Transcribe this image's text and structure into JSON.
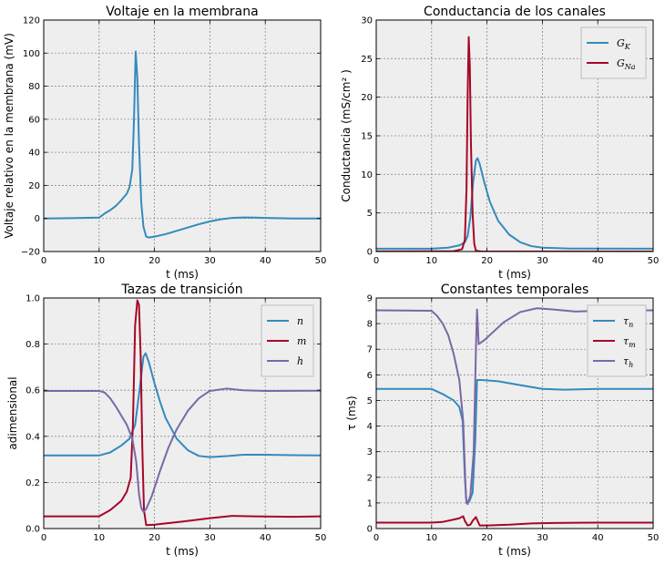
{
  "chart_data": [
    {
      "type": "line",
      "title": "Voltaje en la membrana",
      "xlabel": "t (ms)",
      "ylabel": "Voltaje relativo en la membrana (mV)",
      "xlim": [
        0,
        50
      ],
      "ylim": [
        -20,
        120
      ],
      "xticks": [
        "0",
        "10",
        "20",
        "30",
        "40",
        "50"
      ],
      "yticks": [
        "−20",
        "0",
        "20",
        "40",
        "60",
        "80",
        "100",
        "120"
      ],
      "grid": true,
      "legend": null,
      "series": [
        {
          "color": "#348abd",
          "points": [
            [
              0,
              0
            ],
            [
              5,
              0.2
            ],
            [
              10,
              0.5
            ],
            [
              11,
              3
            ],
            [
              12,
              5
            ],
            [
              13,
              7.5
            ],
            [
              14,
              11
            ],
            [
              15,
              15
            ],
            [
              15.5,
              19
            ],
            [
              16,
              30
            ],
            [
              16.3,
              60
            ],
            [
              16.6,
              101
            ],
            [
              16.9,
              85
            ],
            [
              17.2,
              45
            ],
            [
              17.6,
              10
            ],
            [
              18,
              -5
            ],
            [
              18.5,
              -11
            ],
            [
              19,
              -11.5
            ],
            [
              20,
              -11
            ],
            [
              22,
              -9.5
            ],
            [
              24,
              -7.5
            ],
            [
              26,
              -5.5
            ],
            [
              28,
              -3.5
            ],
            [
              30,
              -1.8
            ],
            [
              32,
              -0.5
            ],
            [
              34,
              0.3
            ],
            [
              36,
              0.6
            ],
            [
              38,
              0.5
            ],
            [
              40,
              0.3
            ],
            [
              45,
              0
            ],
            [
              50,
              0
            ]
          ]
        }
      ]
    },
    {
      "type": "line",
      "title": "Conductancia de los canales",
      "xlabel": "t (ms)",
      "ylabel": "Conductancia (mS/cm² )",
      "xlim": [
        0,
        50
      ],
      "ylim": [
        0,
        30
      ],
      "xticks": [
        "0",
        "10",
        "20",
        "30",
        "40",
        "50"
      ],
      "yticks": [
        "0",
        "5",
        "10",
        "15",
        "20",
        "25",
        "30"
      ],
      "grid": true,
      "legend": "top-right",
      "legend_entries": [
        "G",
        "G"
      ],
      "legend_subscripts": [
        "K",
        "Na"
      ],
      "series": [
        {
          "color": "#348abd",
          "points": [
            [
              0,
              0.37
            ],
            [
              10,
              0.37
            ],
            [
              13,
              0.5
            ],
            [
              15,
              0.8
            ],
            [
              16,
              1.2
            ],
            [
              16.5,
              2
            ],
            [
              17,
              4.5
            ],
            [
              17.5,
              9
            ],
            [
              18,
              11.8
            ],
            [
              18.3,
              12.1
            ],
            [
              18.7,
              11.3
            ],
            [
              19.5,
              9
            ],
            [
              20.5,
              6.5
            ],
            [
              22,
              4
            ],
            [
              24,
              2.2
            ],
            [
              26,
              1.2
            ],
            [
              28,
              0.7
            ],
            [
              30,
              0.5
            ],
            [
              35,
              0.38
            ],
            [
              50,
              0.37
            ]
          ]
        },
        {
          "color": "#a60628",
          "points": [
            [
              0,
              0.02
            ],
            [
              14,
              0.05
            ],
            [
              15.5,
              0.3
            ],
            [
              16,
              1.5
            ],
            [
              16.3,
              8
            ],
            [
              16.5,
              20
            ],
            [
              16.7,
              27.8
            ],
            [
              16.9,
              24
            ],
            [
              17.1,
              14
            ],
            [
              17.4,
              5
            ],
            [
              17.7,
              1
            ],
            [
              18,
              0.1
            ],
            [
              19,
              0
            ],
            [
              50,
              0
            ]
          ]
        }
      ]
    },
    {
      "type": "line",
      "title": "Tazas de transición",
      "xlabel": "t (ms)",
      "ylabel": "adimensional",
      "xlim": [
        0,
        50
      ],
      "ylim": [
        0,
        1
      ],
      "xticks": [
        "0",
        "10",
        "20",
        "30",
        "40",
        "50"
      ],
      "yticks": [
        "0.0",
        "0.2",
        "0.4",
        "0.6",
        "0.8",
        "1.0"
      ],
      "grid": true,
      "legend": "top-right",
      "legend_entries": [
        "n",
        "m",
        "h"
      ],
      "series": [
        {
          "color": "#348abd",
          "points": [
            [
              0,
              0.317
            ],
            [
              10,
              0.317
            ],
            [
              12,
              0.33
            ],
            [
              14,
              0.36
            ],
            [
              15.5,
              0.39
            ],
            [
              16.5,
              0.45
            ],
            [
              17.3,
              0.6
            ],
            [
              18,
              0.745
            ],
            [
              18.4,
              0.76
            ],
            [
              19,
              0.72
            ],
            [
              20,
              0.63
            ],
            [
              21,
              0.55
            ],
            [
              22,
              0.48
            ],
            [
              24,
              0.39
            ],
            [
              26,
              0.34
            ],
            [
              28,
              0.315
            ],
            [
              30,
              0.31
            ],
            [
              33,
              0.314
            ],
            [
              36,
              0.32
            ],
            [
              40,
              0.32
            ],
            [
              45,
              0.318
            ],
            [
              50,
              0.317
            ]
          ]
        },
        {
          "color": "#a60628",
          "points": [
            [
              0,
              0.053
            ],
            [
              10,
              0.053
            ],
            [
              12,
              0.08
            ],
            [
              14,
              0.12
            ],
            [
              15,
              0.16
            ],
            [
              15.7,
              0.22
            ],
            [
              16.1,
              0.45
            ],
            [
              16.5,
              0.88
            ],
            [
              16.9,
              0.99
            ],
            [
              17.2,
              0.97
            ],
            [
              17.5,
              0.75
            ],
            [
              17.8,
              0.35
            ],
            [
              18.1,
              0.08
            ],
            [
              18.5,
              0.015
            ],
            [
              20,
              0.017
            ],
            [
              22,
              0.022
            ],
            [
              25,
              0.03
            ],
            [
              30,
              0.045
            ],
            [
              34,
              0.055
            ],
            [
              38,
              0.053
            ],
            [
              45,
              0.051
            ],
            [
              50,
              0.053
            ]
          ]
        },
        {
          "color": "#7a68a6",
          "points": [
            [
              0,
              0.597
            ],
            [
              10,
              0.597
            ],
            [
              11,
              0.59
            ],
            [
              12,
              0.565
            ],
            [
              13,
              0.53
            ],
            [
              14,
              0.49
            ],
            [
              15,
              0.45
            ],
            [
              16,
              0.39
            ],
            [
              16.7,
              0.29
            ],
            [
              17.2,
              0.15
            ],
            [
              17.6,
              0.09
            ],
            [
              18,
              0.072
            ],
            [
              18.5,
              0.085
            ],
            [
              19.5,
              0.14
            ],
            [
              21,
              0.25
            ],
            [
              22.5,
              0.35
            ],
            [
              24,
              0.43
            ],
            [
              26,
              0.51
            ],
            [
              28,
              0.565
            ],
            [
              30,
              0.597
            ],
            [
              33,
              0.607
            ],
            [
              36,
              0.6
            ],
            [
              40,
              0.597
            ],
            [
              50,
              0.598
            ]
          ]
        }
      ]
    },
    {
      "type": "line",
      "title": "Constantes temporales",
      "xlabel": "t (ms)",
      "ylabel": "τ (ms)",
      "xlim": [
        0,
        50
      ],
      "ylim": [
        0,
        9
      ],
      "xticks": [
        "0",
        "10",
        "20",
        "30",
        "40",
        "50"
      ],
      "yticks": [
        "0",
        "1",
        "2",
        "3",
        "4",
        "5",
        "6",
        "7",
        "8",
        "9"
      ],
      "grid": true,
      "legend": "top-right",
      "legend_entries": [
        "τ",
        "τ",
        "τ"
      ],
      "legend_subscripts": [
        "n",
        "m",
        "h"
      ],
      "series": [
        {
          "color": "#348abd",
          "points": [
            [
              0,
              5.45
            ],
            [
              10,
              5.45
            ],
            [
              12,
              5.25
            ],
            [
              14,
              5.0
            ],
            [
              15,
              4.75
            ],
            [
              15.6,
              4.2
            ],
            [
              16,
              2.0
            ],
            [
              16.3,
              1.0
            ],
            [
              16.8,
              1.05
            ],
            [
              17.4,
              1.4
            ],
            [
              17.9,
              3.5
            ],
            [
              18.2,
              5.8
            ],
            [
              19,
              5.8
            ],
            [
              22,
              5.75
            ],
            [
              26,
              5.6
            ],
            [
              30,
              5.45
            ],
            [
              34,
              5.42
            ],
            [
              40,
              5.45
            ],
            [
              50,
              5.45
            ]
          ]
        },
        {
          "color": "#a60628",
          "points": [
            [
              0,
              0.23
            ],
            [
              10,
              0.23
            ],
            [
              12,
              0.26
            ],
            [
              14,
              0.35
            ],
            [
              15,
              0.4
            ],
            [
              15.7,
              0.48
            ],
            [
              16,
              0.3
            ],
            [
              16.5,
              0.12
            ],
            [
              17,
              0.15
            ],
            [
              17.4,
              0.3
            ],
            [
              18,
              0.45
            ],
            [
              18.3,
              0.3
            ],
            [
              18.7,
              0.12
            ],
            [
              20,
              0.12
            ],
            [
              24,
              0.15
            ],
            [
              28,
              0.2
            ],
            [
              32,
              0.22
            ],
            [
              40,
              0.23
            ],
            [
              50,
              0.23
            ]
          ]
        },
        {
          "color": "#7a68a6",
          "points": [
            [
              0,
              8.52
            ],
            [
              10,
              8.5
            ],
            [
              11,
              8.3
            ],
            [
              12,
              8.0
            ],
            [
              13,
              7.55
            ],
            [
              14,
              6.8
            ],
            [
              15,
              5.8
            ],
            [
              15.7,
              4.2
            ],
            [
              16.2,
              1.2
            ],
            [
              16.5,
              0.95
            ],
            [
              17,
              1.3
            ],
            [
              17.6,
              3.0
            ],
            [
              18,
              7.0
            ],
            [
              18.2,
              8.55
            ],
            [
              18.5,
              7.2
            ],
            [
              19.5,
              7.35
            ],
            [
              21,
              7.65
            ],
            [
              23,
              8.05
            ],
            [
              26,
              8.45
            ],
            [
              29,
              8.6
            ],
            [
              32,
              8.55
            ],
            [
              36,
              8.47
            ],
            [
              40,
              8.5
            ],
            [
              50,
              8.52
            ]
          ]
        }
      ]
    }
  ]
}
